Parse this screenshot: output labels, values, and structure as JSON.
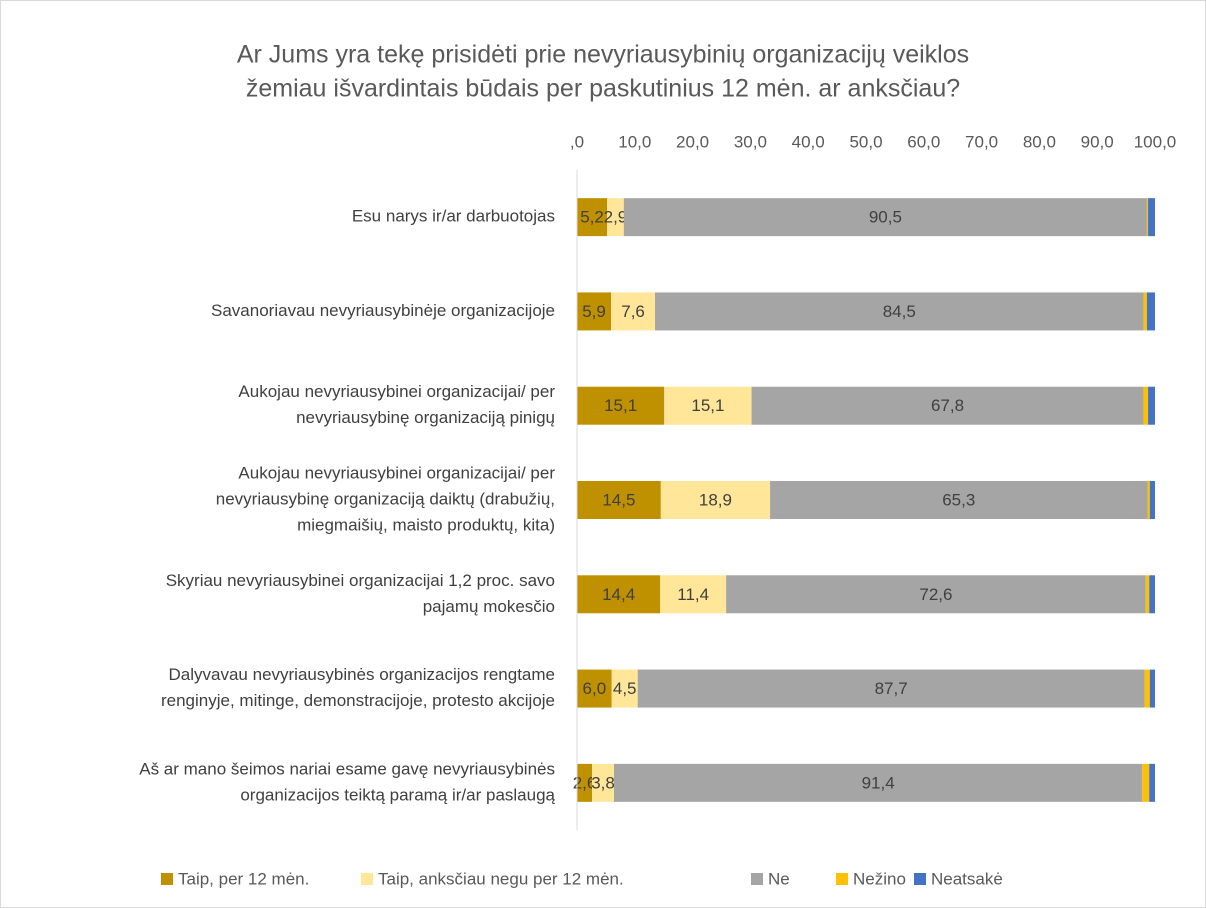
{
  "chart_data": {
    "type": "stacked-bar-horizontal",
    "title": [
      "Ar Jums yra tekę prisidėti prie nevyriausybinių organizacijų veiklos",
      "žemiau išvardintais būdais per paskutinius 12 mėn. ar anksčiau?"
    ],
    "categories": [
      [
        "Esu narys ir/ar darbuotojas"
      ],
      [
        "Savanoriavau nevyriausybinėje organizacijoje"
      ],
      [
        "Aukojau nevyriausybinei organizacijai/ per",
        "nevyriausybinę organizaciją pinigų"
      ],
      [
        "Aukojau nevyriausybinei organizacijai/ per",
        "nevyriausybinę organizaciją daiktų (drabužių,",
        "miegmaišių, maisto produktų, kita)"
      ],
      [
        "Skyriau nevyriausybinei organizacijai 1,2 proc. savo",
        "pajamų mokesčio"
      ],
      [
        "Dalyvavau nevyriausybinės organizacijos rengtame",
        "renginyje, mitinge, demonstracijoje, protesto akcijoje"
      ],
      [
        "Aš ar mano šeimos nariai esame gavę nevyriausybinės",
        "organizacijos teiktą paramą ir/ar paslaugą"
      ]
    ],
    "series": [
      {
        "name": "Taip, per 12 mėn.",
        "color": "#bf9000",
        "values": [
          5.2,
          5.9,
          15.1,
          14.5,
          14.4,
          6.0,
          2.6
        ],
        "value_labels": [
          "5,2",
          "5,9",
          "15,1",
          "14,5",
          "14,4",
          "6,0",
          "2,6"
        ]
      },
      {
        "name": "Taip, anksčiau negu per 12 mėn.",
        "color": "#ffe699",
        "values": [
          2.9,
          7.6,
          15.1,
          18.9,
          11.4,
          4.5,
          3.8
        ],
        "value_labels": [
          "2,9",
          "7,6",
          "15,1",
          "18,9",
          "11,4",
          "4,5",
          "3,8"
        ]
      },
      {
        "name": "Ne",
        "color": "#a5a5a5",
        "values": [
          90.5,
          84.5,
          67.8,
          65.3,
          72.6,
          87.7,
          91.4
        ],
        "value_labels": [
          "90,5",
          "84,5",
          "67,8",
          "65,3",
          "72,6",
          "87,7",
          "91,4"
        ]
      },
      {
        "name": "Nežino",
        "color": "#ffc000",
        "values": [
          0.2,
          0.6,
          0.8,
          0.4,
          0.6,
          0.9,
          1.2
        ]
      },
      {
        "name": "Neatsakė",
        "color": "#4472c4",
        "values": [
          1.2,
          1.4,
          1.2,
          0.9,
          1.0,
          0.9,
          1.0
        ]
      }
    ],
    "xlim": [
      0,
      100
    ],
    "xticks": [
      {
        "value": 0,
        "label": ",0"
      },
      {
        "value": 10,
        "label": "10,0"
      },
      {
        "value": 20,
        "label": "20,0"
      },
      {
        "value": 30,
        "label": "30,0"
      },
      {
        "value": 40,
        "label": "40,0"
      },
      {
        "value": 50,
        "label": "50,0"
      },
      {
        "value": 60,
        "label": "60,0"
      },
      {
        "value": 70,
        "label": "70,0"
      },
      {
        "value": 80,
        "label": "80,0"
      },
      {
        "value": 90,
        "label": "90,0"
      },
      {
        "value": 100,
        "label": "100,0"
      }
    ],
    "grid": false,
    "legend": "bottom"
  }
}
